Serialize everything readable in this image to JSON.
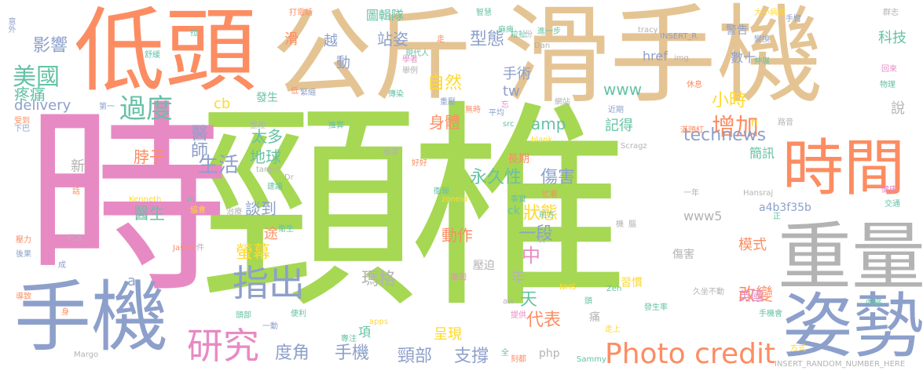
{
  "palette": {
    "green": "#a6d854",
    "pink": "#e78ac3",
    "orange": "#fc8d62",
    "tan": "#e5c494",
    "blue": "#8da0cb",
    "yellow": "#ffd92f",
    "teal": "#66c2a5",
    "gray": "#b3b3b3"
  },
  "words": [
    {
      "text": "頸椎",
      "c": "green"
    },
    {
      "text": "時",
      "c": "pink"
    },
    {
      "text": "公斤",
      "c": "tan"
    },
    {
      "text": "滑手機",
      "c": "tan"
    },
    {
      "text": "低頭",
      "c": "orange"
    },
    {
      "text": "手機",
      "c": "blue"
    },
    {
      "text": "姿勢",
      "c": "blue"
    },
    {
      "text": "重量",
      "c": "gray"
    },
    {
      "text": "時間",
      "c": "orange"
    },
    {
      "text": "指出",
      "c": "blue"
    },
    {
      "text": "研究",
      "c": "pink"
    },
    {
      "text": "Photo credit",
      "c": "orange"
    },
    {
      "text": "過度",
      "c": "teal"
    },
    {
      "text": "美國",
      "c": "teal"
    },
    {
      "text": "影響",
      "c": "blue"
    },
    {
      "text": "疼痛",
      "c": "teal"
    },
    {
      "text": "delivery",
      "c": "blue"
    },
    {
      "text": "醫師",
      "c": "blue"
    },
    {
      "text": "cb",
      "c": "yellow"
    },
    {
      "text": "脖子",
      "c": "orange"
    },
    {
      "text": "生活",
      "c": "blue"
    },
    {
      "text": "醫生",
      "c": "teal"
    },
    {
      "text": "新",
      "c": "gray"
    },
    {
      "text": "太多",
      "c": "teal"
    },
    {
      "text": "地球",
      "c": "teal"
    },
    {
      "text": "談到",
      "c": "blue"
    },
    {
      "text": "途",
      "c": "orange"
    },
    {
      "text": "螢幕",
      "c": "yellow"
    },
    {
      "text": "瑪格",
      "c": "gray"
    },
    {
      "text": "年",
      "c": "gray"
    },
    {
      "text": "天",
      "c": "teal"
    },
    {
      "text": "中",
      "c": "pink"
    },
    {
      "text": "一段",
      "c": "blue"
    },
    {
      "text": "狀態",
      "c": "yellow"
    },
    {
      "text": "動作",
      "c": "orange"
    },
    {
      "text": "永久性",
      "c": "teal"
    },
    {
      "text": "傷害",
      "c": "blue"
    },
    {
      "text": "身體",
      "c": "orange"
    },
    {
      "text": "自然",
      "c": "yellow"
    },
    {
      "text": "型態",
      "c": "blue"
    },
    {
      "text": "站姿",
      "c": "blue"
    },
    {
      "text": "越",
      "c": "blue"
    },
    {
      "text": "動",
      "c": "blue"
    },
    {
      "text": "圖輯隊",
      "c": "teal"
    },
    {
      "text": "手術",
      "c": "blue"
    },
    {
      "text": "tw",
      "c": "blue"
    },
    {
      "text": "www",
      "c": "teal"
    },
    {
      "text": "amp",
      "c": "teal"
    },
    {
      "text": "記得",
      "c": "teal"
    },
    {
      "text": "小時",
      "c": "yellow"
    },
    {
      "text": "增加",
      "c": "orange"
    },
    {
      "text": "technews",
      "c": "blue"
    },
    {
      "text": "簡訊",
      "c": "teal"
    },
    {
      "text": "科技",
      "c": "teal"
    },
    {
      "text": "警告",
      "c": "blue"
    },
    {
      "text": "數十",
      "c": "blue"
    },
    {
      "text": "href",
      "c": "blue"
    },
    {
      "text": "模式",
      "c": "orange"
    },
    {
      "text": "改變",
      "c": "orange"
    },
    {
      "text": "英國",
      "c": "pink"
    },
    {
      "text": "代表",
      "c": "orange"
    },
    {
      "text": "呈現",
      "c": "yellow"
    },
    {
      "text": "項",
      "c": "teal"
    },
    {
      "text": "度角",
      "c": "blue"
    },
    {
      "text": "頸部",
      "c": "blue"
    },
    {
      "text": "支撐",
      "c": "blue"
    },
    {
      "text": "php",
      "c": "gray"
    },
    {
      "text": "a4b3f35b",
      "c": "blue"
    },
    {
      "text": "www5",
      "c": "gray"
    },
    {
      "text": "習慣",
      "c": "yellow"
    },
    {
      "text": "傷害",
      "c": "gray"
    },
    {
      "text": "說",
      "c": "gray"
    },
    {
      "text": "n",
      "c": "yellow"
    },
    {
      "text": "壓迫",
      "c": "gray"
    },
    {
      "text": "痛",
      "c": "gray"
    },
    {
      "text": "ck",
      "c": "teal"
    },
    {
      "text": "長期",
      "c": "orange"
    },
    {
      "text": "a",
      "c": "blue"
    },
    {
      "text": "滑",
      "c": "orange"
    },
    {
      "text": "發生",
      "c": "teal"
    },
    {
      "text": "INSERT_RANDOM_NUMBER_HERE",
      "c": "gray"
    },
    {
      "text": "Scragz",
      "c": "gray"
    },
    {
      "text": "Hansraj",
      "c": "gray"
    },
    {
      "text": "Kenneth",
      "c": "yellow"
    },
    {
      "text": "Jason",
      "c": "orange"
    },
    {
      "text": "Margo",
      "c": "gray"
    },
    {
      "text": "Sammy",
      "c": "teal"
    },
    {
      "text": "NHS",
      "c": "yellow"
    },
    {
      "text": "apps",
      "c": "yellow"
    },
    {
      "text": "Zen",
      "c": "teal"
    },
    {
      "text": "zoneid",
      "c": "yellow"
    },
    {
      "text": "blank",
      "c": "yellow"
    },
    {
      "text": "target",
      "c": "gray"
    },
    {
      "text": "src",
      "c": "teal"
    },
    {
      "text": "img",
      "c": "gray"
    },
    {
      "text": "tracy",
      "c": "gray"
    },
    {
      "text": "INSERT_R",
      "c": "blue"
    },
    {
      "text": "Dan",
      "c": "gray"
    },
    {
      "text": "Dr",
      "c": "gray"
    },
    {
      "text": "aw",
      "c": "gray"
    },
    {
      "text": "m",
      "c": "teal"
    },
    {
      "text": "意外",
      "c": "blue"
    },
    {
      "text": "打電話",
      "c": "orange"
    },
    {
      "text": "舒緩",
      "c": "teal"
    },
    {
      "text": "第一",
      "c": "blue"
    },
    {
      "text": "下巴",
      "c": "blue"
    },
    {
      "text": "整理",
      "c": "gray"
    },
    {
      "text": "推算",
      "c": "teal"
    },
    {
      "text": "專注",
      "c": "teal"
    },
    {
      "text": "便利",
      "c": "teal"
    },
    {
      "text": "頭部",
      "c": "teal"
    },
    {
      "text": "行人",
      "c": "gray"
    },
    {
      "text": "後果",
      "c": "blue"
    },
    {
      "text": "壓力",
      "c": "orange"
    },
    {
      "text": "導致",
      "c": "orange"
    },
    {
      "text": "治療",
      "c": "gray"
    },
    {
      "text": "建議",
      "c": "teal"
    },
    {
      "text": "協會",
      "c": "yellow"
    },
    {
      "text": "衛生",
      "c": "teal"
    },
    {
      "text": "休息",
      "c": "orange"
    },
    {
      "text": "近期",
      "c": "blue"
    },
    {
      "text": "網站",
      "c": "gray"
    },
    {
      "text": "事實",
      "c": "teal"
    },
    {
      "text": "平均",
      "c": "blue"
    },
    {
      "text": "前方",
      "c": "teal"
    },
    {
      "text": "一年",
      "c": "gray"
    },
    {
      "text": "一動",
      "c": "blue"
    },
    {
      "text": "久坐不動",
      "c": "gray"
    },
    {
      "text": "手機會",
      "c": "teal"
    },
    {
      "text": "方式",
      "c": "yellow"
    },
    {
      "text": "內縮",
      "c": "teal"
    },
    {
      "text": "物理",
      "c": "teal"
    },
    {
      "text": "回來",
      "c": "pink"
    },
    {
      "text": "變換",
      "c": "blue"
    },
    {
      "text": "伸展",
      "c": "teal"
    },
    {
      "text": "大小病症",
      "c": "yellow"
    },
    {
      "text": "群志",
      "c": "gray"
    },
    {
      "text": "智慧",
      "c": "teal"
    },
    {
      "text": "麻痺",
      "c": "teal"
    },
    {
      "text": "進一步",
      "c": "teal"
    },
    {
      "text": "交通",
      "c": "teal"
    },
    {
      "text": "健康",
      "c": "pink"
    },
    {
      "text": "滿頭紅",
      "c": "orange"
    },
    {
      "text": "路音",
      "c": "gray"
    },
    {
      "text": "發生率",
      "c": "teal"
    },
    {
      "text": "走上",
      "c": "yellow"
    },
    {
      "text": "提供",
      "c": "pink"
    },
    {
      "text": "刻都",
      "c": "orange"
    },
    {
      "text": "原因",
      "c": "pink"
    },
    {
      "text": "現代人",
      "c": "teal"
    },
    {
      "text": "學者",
      "c": "pink"
    },
    {
      "text": "舉例",
      "c": "gray"
    },
    {
      "text": "緊縮",
      "c": "blue"
    },
    {
      "text": "低",
      "c": "orange"
    },
    {
      "text": "傳染",
      "c": "teal"
    },
    {
      "text": "忙著",
      "c": "orange"
    },
    {
      "text": "衛報",
      "c": "teal"
    },
    {
      "text": "換算",
      "c": "gray"
    },
    {
      "text": "好好",
      "c": "orange"
    },
    {
      "text": "手臂",
      "c": "blue"
    },
    {
      "text": "受到",
      "c": "orange"
    },
    {
      "text": "拉扯",
      "c": "teal"
    },
    {
      "text": "重壓",
      "c": "blue"
    },
    {
      "text": "無時",
      "c": "orange"
    },
    {
      "text": "話",
      "c": "orange"
    },
    {
      "text": "機",
      "c": "gray"
    },
    {
      "text": "全",
      "c": "teal"
    },
    {
      "text": "身",
      "c": "orange"
    },
    {
      "text": "次",
      "c": "gray"
    },
    {
      "text": "正",
      "c": "teal"
    },
    {
      "text": "頭",
      "c": "teal"
    },
    {
      "text": "走",
      "c": "orange"
    },
    {
      "text": "忘",
      "c": "pink"
    },
    {
      "text": "腦",
      "c": "gray"
    },
    {
      "text": "成",
      "c": "blue"
    },
    {
      "text": "拉",
      "c": "teal"
    },
    {
      "text": "份",
      "c": "gray"
    },
    {
      "text": "件",
      "c": "gray"
    }
  ]
}
